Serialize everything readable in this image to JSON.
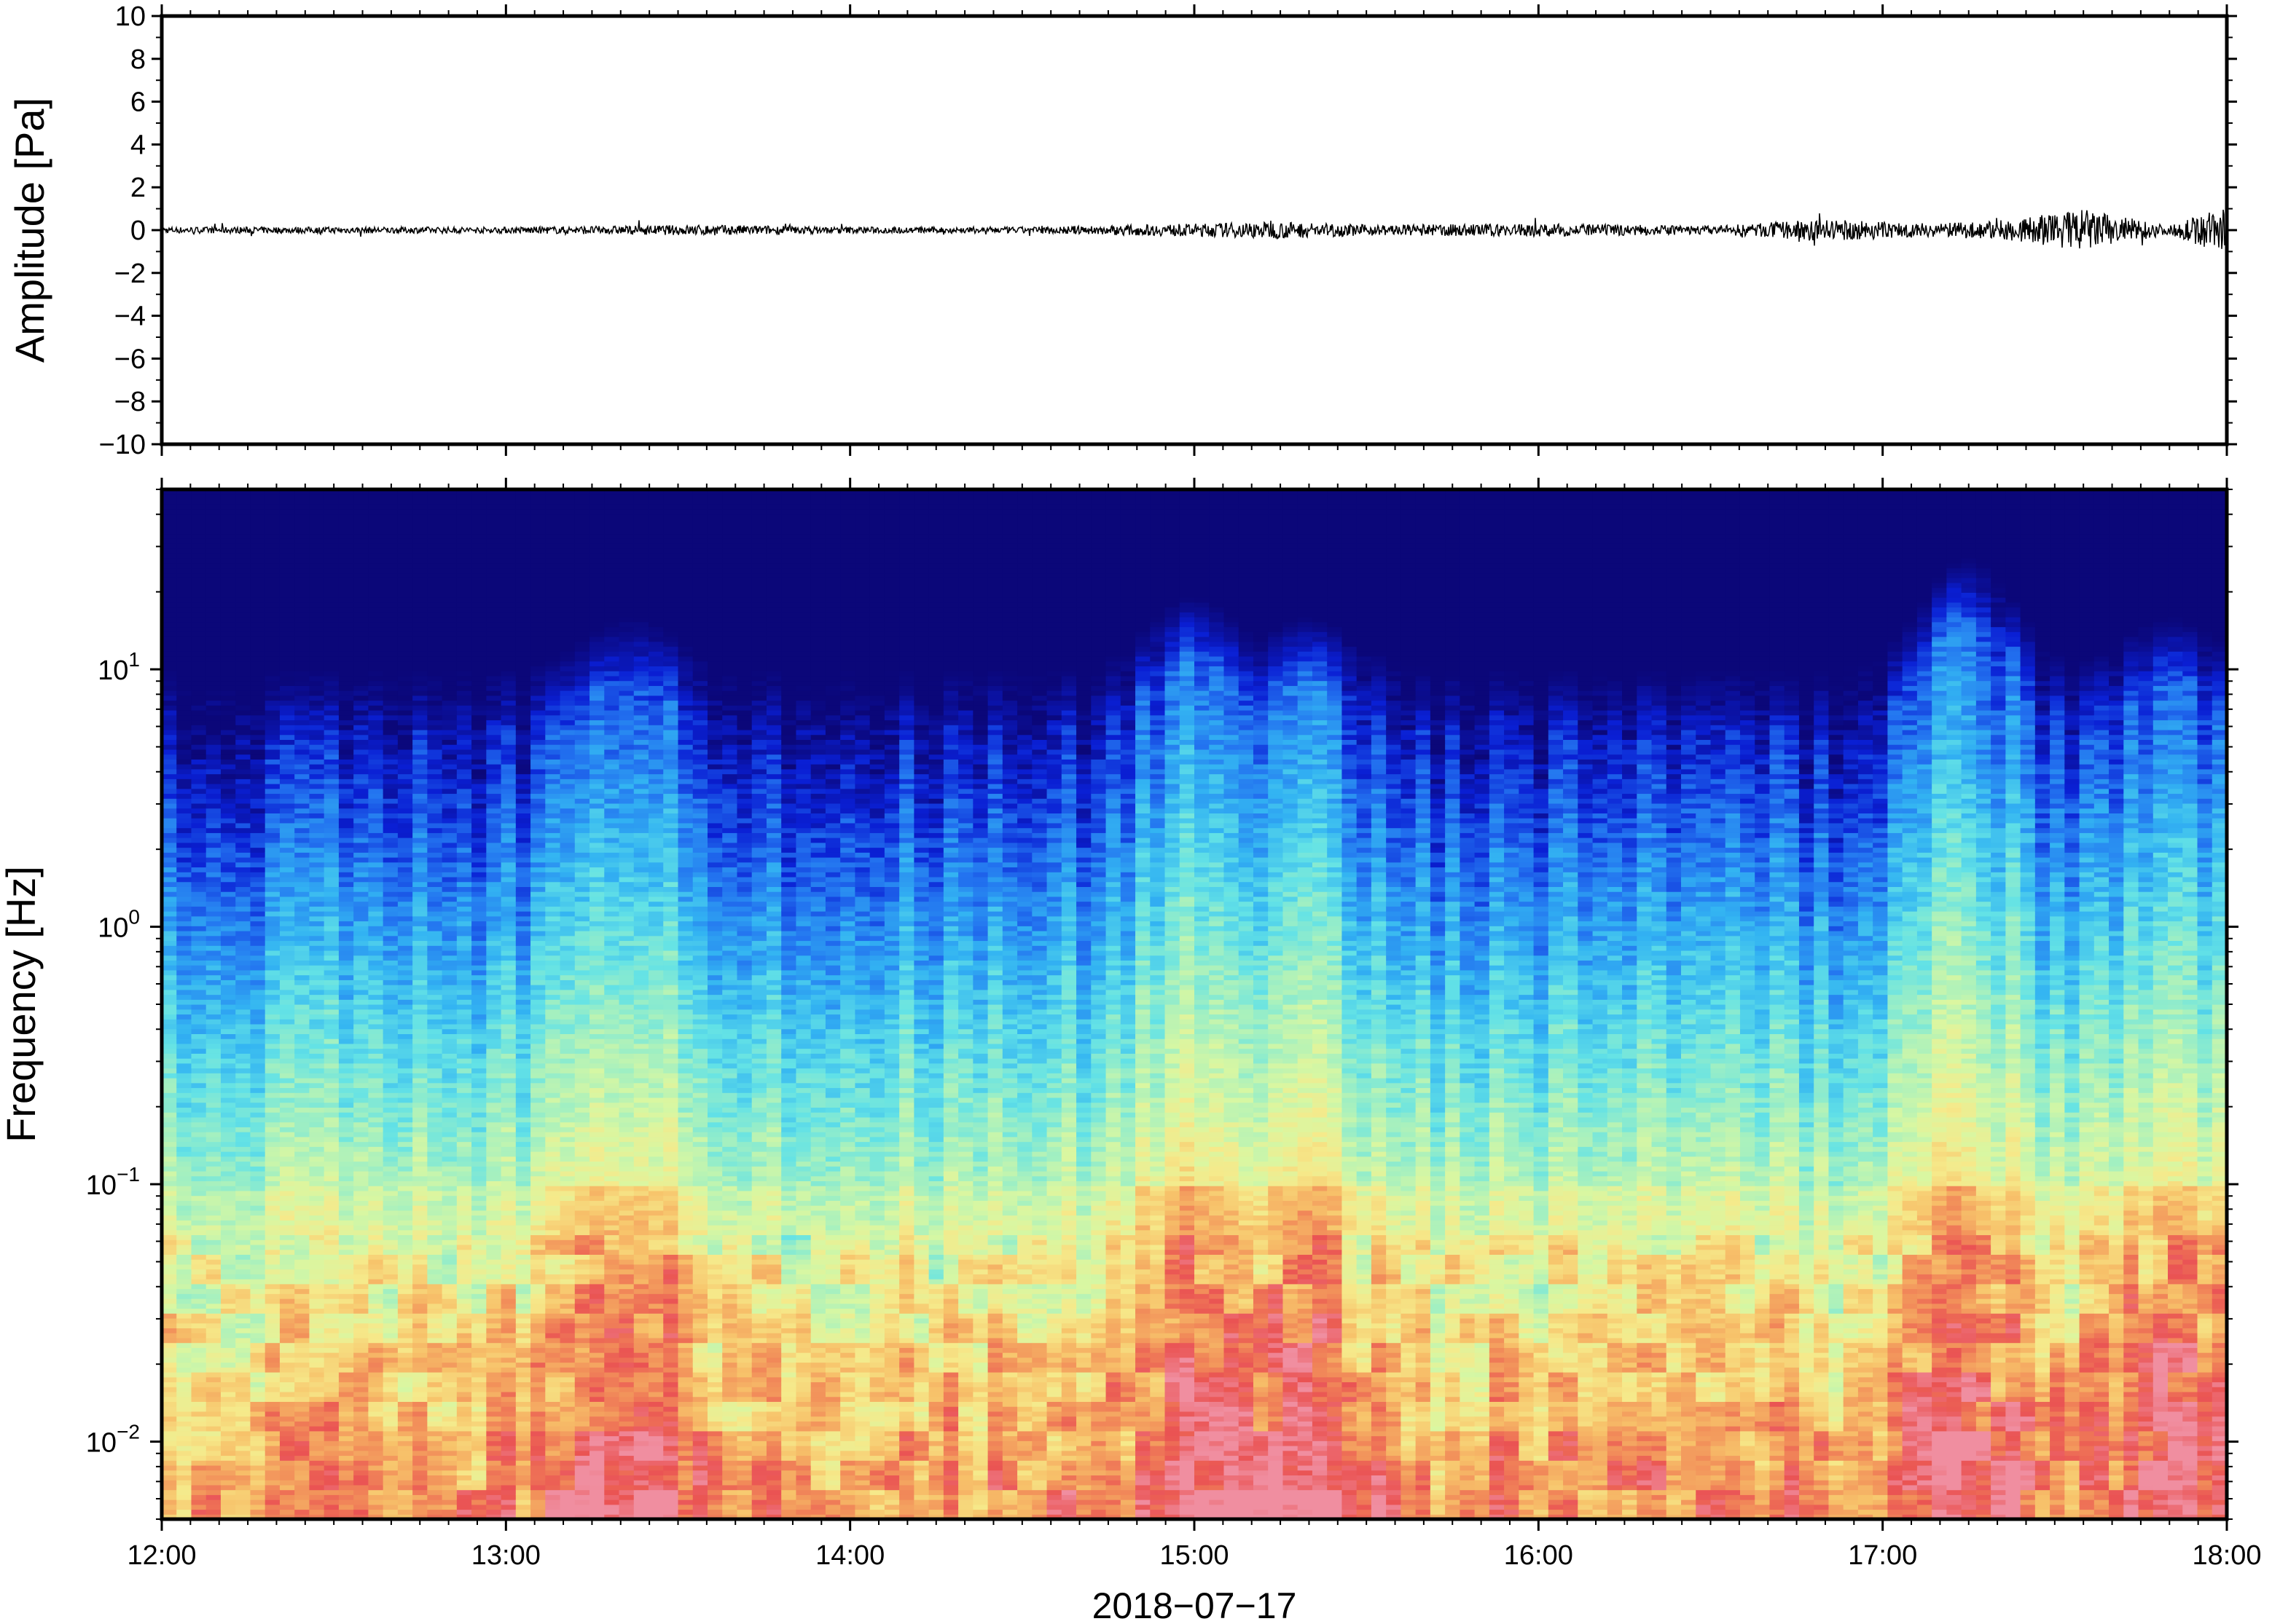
{
  "chart_data": [
    {
      "type": "line",
      "panel": "waveform",
      "ylabel": "Amplitude [Pa]",
      "ylim": [
        -10,
        10
      ],
      "y_ticks": [
        10,
        8,
        6,
        4,
        2,
        0,
        -2,
        -4,
        -6,
        -8,
        -10
      ],
      "y_tick_labels": [
        "10",
        "8",
        "6",
        "4",
        "2",
        "0",
        "−2",
        "−4",
        "−6",
        "−8",
        "−10"
      ],
      "xlim": [
        "12:00",
        "18:00"
      ],
      "grid": false,
      "series": [
        {
          "x": [
            "12:00",
            "12:30",
            "13:00",
            "13:20",
            "13:35",
            "14:00",
            "14:30",
            "15:00",
            "15:15",
            "15:30",
            "16:00",
            "16:30",
            "16:50",
            "17:10",
            "17:22",
            "17:35",
            "17:50",
            "18:00"
          ],
          "envelope": [
            0.15,
            0.15,
            0.15,
            0.2,
            0.25,
            0.15,
            0.15,
            0.3,
            0.4,
            0.25,
            0.3,
            0.2,
            0.5,
            0.3,
            0.5,
            1.0,
            0.2,
            1.2
          ],
          "color": "#000000"
        }
      ]
    },
    {
      "type": "heatmap",
      "panel": "spectrogram",
      "ylabel": "Frequency [Hz]",
      "yscale": "log",
      "ylim": [
        0.005,
        50
      ],
      "y_ticks": [
        0.01,
        0.1,
        1,
        10
      ],
      "y_tick_labels": [
        {
          "base": "10",
          "exp": "−2"
        },
        {
          "base": "10",
          "exp": "−1"
        },
        {
          "base": "10",
          "exp": "0"
        },
        {
          "base": "10",
          "exp": "1"
        }
      ],
      "xlabel": "2018−07−17",
      "x_ticks": [
        "12:00",
        "13:00",
        "14:00",
        "15:00",
        "16:00",
        "17:00",
        "18:00"
      ],
      "xlim": [
        "12:00",
        "18:00"
      ],
      "colormap": [
        "#0b0779",
        "#0a1fd4",
        "#2374f0",
        "#33b4f2",
        "#63e2e6",
        "#a4f0c0",
        "#d8f7a2",
        "#f6e98a",
        "#f7c26a",
        "#f2905a",
        "#ea5353",
        "#f08ea0"
      ],
      "high_energy_events": [
        {
          "time": "13:22",
          "max_freq_hz": 10
        },
        {
          "time": "15:00",
          "max_freq_hz": 12
        },
        {
          "time": "15:20",
          "max_freq_hz": 10
        },
        {
          "time": "17:15",
          "max_freq_hz": 17
        },
        {
          "time": "17:50",
          "max_freq_hz": 10
        }
      ]
    }
  ]
}
